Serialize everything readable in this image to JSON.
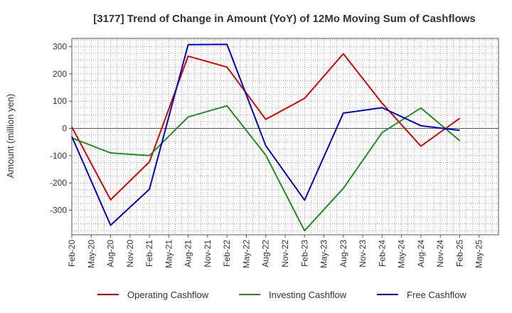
{
  "chart_data": {
    "type": "line",
    "title": "[3177]  Trend of Change in Amount (YoY) of 12Mo Moving Sum of Cashflows",
    "xlabel": "",
    "ylabel": "Amount (million yen)",
    "ylim": [
      -390,
      330
    ],
    "yticks": [
      300,
      200,
      100,
      0,
      -100,
      -200,
      -300
    ],
    "grid": true,
    "legend_position": "bottom",
    "x_ticks": [
      "Feb-20",
      "May-20",
      "Aug-20",
      "Nov-20",
      "Feb-21",
      "May-21",
      "Aug-21",
      "Nov-21",
      "Feb-22",
      "May-22",
      "Aug-22",
      "Nov-22",
      "Feb-23",
      "May-23",
      "Aug-23",
      "Nov-23",
      "Feb-24",
      "May-24",
      "Aug-24",
      "Nov-24",
      "Feb-25",
      "May-25"
    ],
    "categories": [
      "Feb-20",
      "Aug-20",
      "Feb-21",
      "Aug-21",
      "Feb-22",
      "Aug-22",
      "Feb-23",
      "Aug-23",
      "Feb-24",
      "Aug-24",
      "Feb-25"
    ],
    "series": [
      {
        "name": "Operating Cashflow",
        "color": "#dd0000",
        "values": [
          5,
          -262,
          -123,
          265,
          225,
          33,
          110,
          274,
          92,
          -65,
          37
        ]
      },
      {
        "name": "Investing Cashflow",
        "color": "#228b22",
        "values": [
          -35,
          -90,
          -100,
          42,
          83,
          -98,
          -375,
          -220,
          -15,
          75,
          -45
        ]
      },
      {
        "name": "Free Cashflow",
        "color": "#0000cc",
        "values": [
          -30,
          -355,
          -223,
          307,
          308,
          -63,
          -263,
          56,
          76,
          10,
          -7
        ]
      }
    ]
  }
}
